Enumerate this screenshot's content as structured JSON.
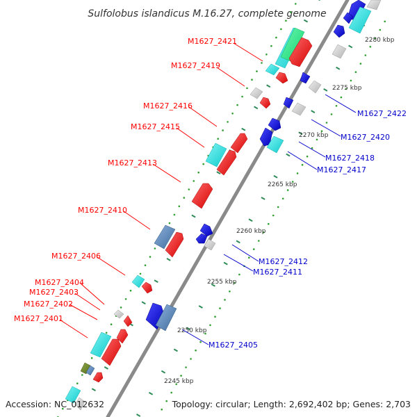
{
  "title": "Sulfolobus islandicus M.16.27, complete genome",
  "footer": {
    "accession": "Accession: NC_012632",
    "topology": "Topology: circular; Length: 2,692,402 bp; Genes: 2,703"
  },
  "colors": {
    "backbone": "#888888",
    "tick": "#2e8b57",
    "ruler_dot": "#2e9e2e",
    "label_top_strand": "#ff0000",
    "label_bottom_strand": "#0000cc",
    "red_gene": "#ff2020",
    "blue_gene": "#1a1aee",
    "cyan_gene": "#22e4e4",
    "green_gene": "#22ee88",
    "gray_gene": "#cccccc",
    "steel_gene": "#5b86b8",
    "olive_gene": "#6e8a2a"
  },
  "kbp_labels": [
    "2245 kbp",
    "2250 kbp",
    "2255 kbp",
    "2260 kbp",
    "2265 kbp",
    "2270 kbp",
    "2275 kbp",
    "2280 kbp"
  ],
  "top_labels": [
    "M1627_2421",
    "M1627_2419",
    "M1627_2416",
    "M1627_2415",
    "M1627_2413",
    "M1627_2410",
    "M1627_2406",
    "M1627_2404",
    "M1627_2403",
    "M1627_2402",
    "M1627_2401"
  ],
  "bottom_labels": [
    "M1627_2422",
    "M1627_2420",
    "M1627_2418",
    "M1627_2417",
    "M1627_2412",
    "M1627_2411",
    "M1627_2405"
  ]
}
